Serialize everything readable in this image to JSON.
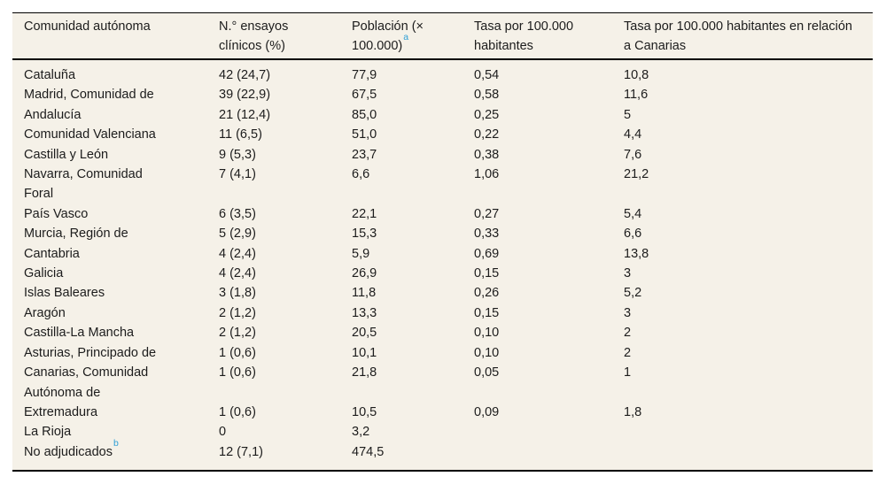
{
  "page": {
    "background": "#ffffff"
  },
  "table": {
    "background": "#f5f1e8",
    "rule_color": "#000000",
    "text_color": "#1c1c1c",
    "footnote_link_color": "#2f9fd6",
    "columns": [
      {
        "label": "Comunidad autónoma",
        "sup": ""
      },
      {
        "label": "N.° ensayos clínicos (%)",
        "sup": ""
      },
      {
        "label": "Población (× 100.000)",
        "sup": "a"
      },
      {
        "label": "Tasa por 100.000 habitantes",
        "sup": ""
      },
      {
        "label": "Tasa por 100.000 habitantes en relación a Canarias",
        "sup": ""
      }
    ],
    "rows": [
      {
        "cells": [
          "Cataluña",
          "42 (24,7)",
          "77,9",
          "0,54",
          "10,8"
        ],
        "sup": ""
      },
      {
        "cells": [
          "Madrid, Comunidad de",
          "39 (22,9)",
          "67,5",
          "0,58",
          "11,6"
        ],
        "sup": ""
      },
      {
        "cells": [
          "Andalucía",
          "21 (12,4)",
          "85,0",
          "0,25",
          "5"
        ],
        "sup": ""
      },
      {
        "cells": [
          "Comunidad Valenciana",
          "11 (6,5)",
          "51,0",
          "0,22",
          "4,4"
        ],
        "sup": ""
      },
      {
        "cells": [
          "Castilla y León",
          "9 (5,3)",
          "23,7",
          "0,38",
          "7,6"
        ],
        "sup": ""
      },
      {
        "cells": [
          "Navarra, Comunidad Foral",
          "7 (4,1)",
          "6,6",
          "1,06",
          "21,2"
        ],
        "sup": ""
      },
      {
        "cells": [
          "País Vasco",
          "6 (3,5)",
          "22,1",
          "0,27",
          "5,4"
        ],
        "sup": ""
      },
      {
        "cells": [
          "Murcia, Región de",
          "5 (2,9)",
          "15,3",
          "0,33",
          "6,6"
        ],
        "sup": ""
      },
      {
        "cells": [
          "Cantabria",
          "4 (2,4)",
          "5,9",
          "0,69",
          "13,8"
        ],
        "sup": ""
      },
      {
        "cells": [
          "Galicia",
          "4 (2,4)",
          "26,9",
          "0,15",
          "3"
        ],
        "sup": ""
      },
      {
        "cells": [
          "Islas Baleares",
          "3 (1,8)",
          "11,8",
          "0,26",
          "5,2"
        ],
        "sup": ""
      },
      {
        "cells": [
          "Aragón",
          "2 (1,2)",
          "13,3",
          "0,15",
          "3"
        ],
        "sup": ""
      },
      {
        "cells": [
          "Castilla-La Mancha",
          "2 (1,2)",
          "20,5",
          "0,10",
          "2"
        ],
        "sup": ""
      },
      {
        "cells": [
          "Asturias, Principado de",
          "1 (0,6)",
          "10,1",
          "0,10",
          "2"
        ],
        "sup": ""
      },
      {
        "cells": [
          "Canarias, Comunidad Autónoma de",
          "1 (0,6)",
          "21,8",
          "0,05",
          "1"
        ],
        "sup": ""
      },
      {
        "cells": [
          "Extremadura",
          "1 (0,6)",
          "10,5",
          "0,09",
          "1,8"
        ],
        "sup": ""
      },
      {
        "cells": [
          "La Rioja",
          "0",
          "3,2",
          "",
          ""
        ],
        "sup": ""
      },
      {
        "cells": [
          "No adjudicados",
          "12 (7,1)",
          "474,5",
          "",
          ""
        ],
        "sup": "b"
      }
    ]
  }
}
